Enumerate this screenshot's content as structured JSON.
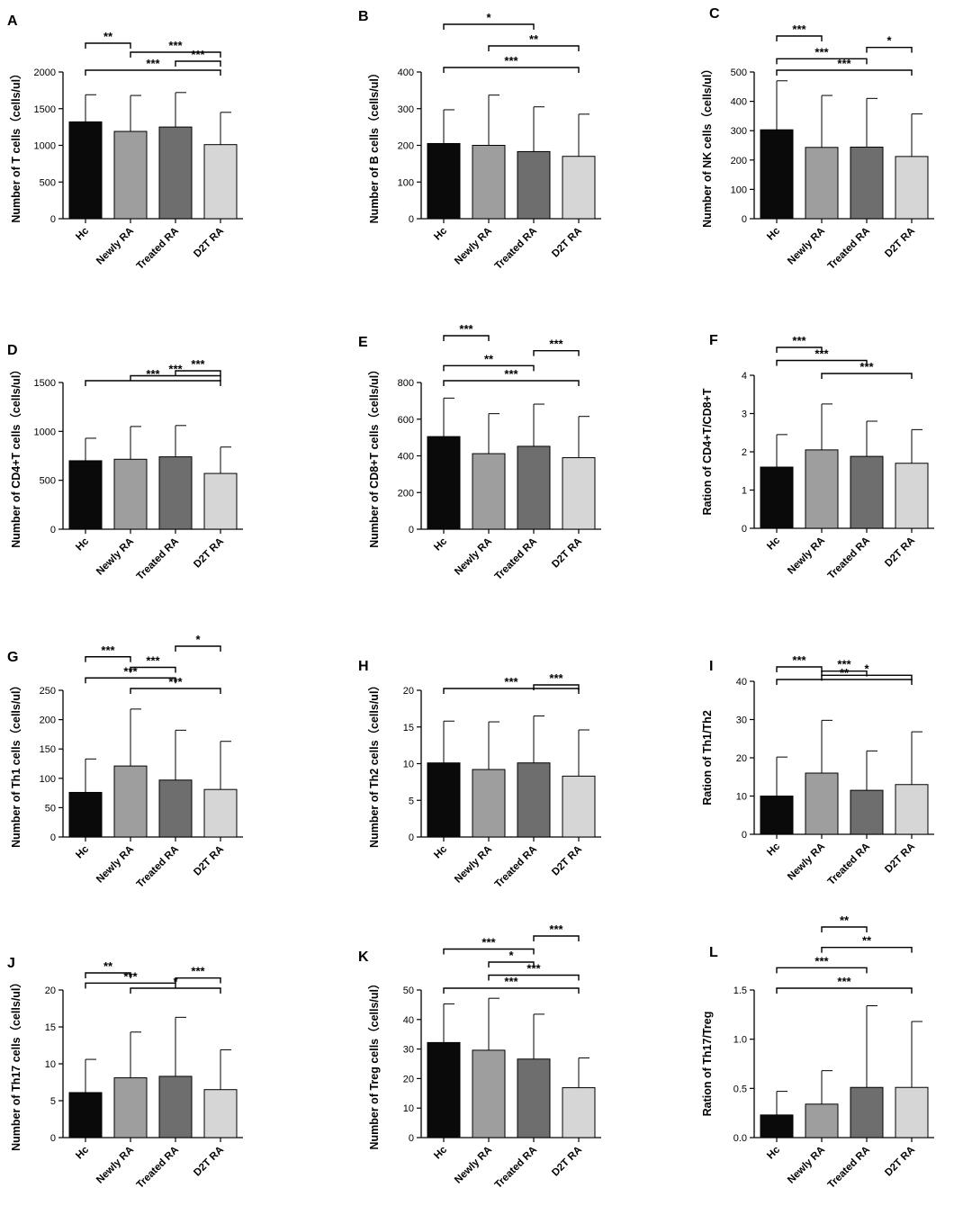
{
  "figure": {
    "categories": [
      "Hc",
      "Newly RA",
      "Treated RA",
      "D2T RA"
    ],
    "bar_colors": [
      "#0a0a0a",
      "#9e9e9e",
      "#6e6e6e",
      "#d6d6d6"
    ]
  },
  "chart_data": [
    {
      "panel": "A",
      "type": "bar",
      "categories": [
        "Hc",
        "Newly RA",
        "Treated RA",
        "D2T RA"
      ],
      "values": [
        1320,
        1190,
        1250,
        1010
      ],
      "errors_upper": [
        1690,
        1680,
        1720,
        1450
      ],
      "ylabel": "Number of T cells（cells/ul）",
      "ylim": [
        0,
        2000
      ],
      "yticks": [
        0,
        500,
        1000,
        1500,
        2000
      ],
      "comparisons": [
        {
          "from": 0,
          "to": 1,
          "label": "**"
        },
        {
          "from": 1,
          "to": 3,
          "label": "***"
        },
        {
          "from": 2,
          "to": 3,
          "label": "***"
        },
        {
          "from": 0,
          "to": 3,
          "label": "***"
        }
      ]
    },
    {
      "panel": "B",
      "type": "bar",
      "categories": [
        "Hc",
        "Newly RA",
        "Treated RA",
        "D2T RA"
      ],
      "values": [
        205,
        200,
        183,
        170
      ],
      "errors_upper": [
        297,
        337,
        305,
        285
      ],
      "ylabel": "Number of B cells（cells/ul）",
      "ylim": [
        0,
        400
      ],
      "yticks": [
        0,
        100,
        200,
        300,
        400
      ],
      "comparisons": [
        {
          "from": 0,
          "to": 2,
          "label": "*"
        },
        {
          "from": 1,
          "to": 3,
          "label": "**"
        },
        {
          "from": 0,
          "to": 3,
          "label": "***"
        }
      ]
    },
    {
      "panel": "C",
      "type": "bar",
      "categories": [
        "Hc",
        "Newly RA",
        "Treated RA",
        "D2T RA"
      ],
      "values": [
        303,
        243,
        244,
        212
      ],
      "errors_upper": [
        470,
        420,
        410,
        357
      ],
      "ylabel": "Number of NK cells（cells/ul）",
      "ylim": [
        0,
        500
      ],
      "yticks": [
        0,
        100,
        200,
        300,
        400,
        500
      ],
      "comparisons": [
        {
          "from": 0,
          "to": 1,
          "label": "***"
        },
        {
          "from": 2,
          "to": 3,
          "label": "*"
        },
        {
          "from": 0,
          "to": 2,
          "label": "***"
        },
        {
          "from": 0,
          "to": 3,
          "label": "***"
        }
      ]
    },
    {
      "panel": "D",
      "type": "bar",
      "categories": [
        "Hc",
        "Newly RA",
        "Treated RA",
        "D2T RA"
      ],
      "values": [
        700,
        715,
        740,
        570
      ],
      "errors_upper": [
        930,
        1050,
        1060,
        840
      ],
      "ylabel": "Number of CD4+T cells（cells/ul）",
      "ylim": [
        0,
        1500
      ],
      "yticks": [
        0,
        500,
        1000,
        1500
      ],
      "comparisons": [
        {
          "from": 2,
          "to": 3,
          "label": "***"
        },
        {
          "from": 1,
          "to": 3,
          "label": "***"
        },
        {
          "from": 0,
          "to": 3,
          "label": "***"
        }
      ]
    },
    {
      "panel": "E",
      "type": "bar",
      "categories": [
        "Hc",
        "Newly RA",
        "Treated RA",
        "D2T RA"
      ],
      "values": [
        505,
        412,
        452,
        390
      ],
      "errors_upper": [
        715,
        630,
        682,
        615
      ],
      "ylabel": "Number of CD8+T cells（cells/ul）",
      "ylim": [
        0,
        800
      ],
      "yticks": [
        0,
        200,
        400,
        600,
        800
      ],
      "comparisons": [
        {
          "from": 0,
          "to": 1,
          "label": "***"
        },
        {
          "from": 2,
          "to": 3,
          "label": "***"
        },
        {
          "from": 0,
          "to": 2,
          "label": "**"
        },
        {
          "from": 0,
          "to": 3,
          "label": "***"
        }
      ]
    },
    {
      "panel": "F",
      "type": "bar",
      "categories": [
        "Hc",
        "Newly RA",
        "Treated RA",
        "D2T RA"
      ],
      "values": [
        1.6,
        2.05,
        1.88,
        1.7
      ],
      "errors_upper": [
        2.45,
        3.25,
        2.8,
        2.58
      ],
      "ylabel": "Ration of CD4+T/CD8+T",
      "ylim": [
        0,
        4
      ],
      "yticks": [
        0,
        1,
        2,
        3,
        4
      ],
      "comparisons": [
        {
          "from": 0,
          "to": 1,
          "label": "***"
        },
        {
          "from": 0,
          "to": 2,
          "label": "***"
        },
        {
          "from": 1,
          "to": 3,
          "label": "***"
        }
      ]
    },
    {
      "panel": "G",
      "type": "bar",
      "categories": [
        "Hc",
        "Newly RA",
        "Treated RA",
        "D2T RA"
      ],
      "values": [
        76,
        121,
        97,
        81
      ],
      "errors_upper": [
        133,
        218,
        182,
        163
      ],
      "ylabel": "Number of Th1 cells（cells/ul）",
      "ylim": [
        0,
        250
      ],
      "yticks": [
        0,
        50,
        100,
        150,
        200,
        250
      ],
      "comparisons": [
        {
          "from": 2,
          "to": 3,
          "label": "*"
        },
        {
          "from": 0,
          "to": 1,
          "label": "***"
        },
        {
          "from": 1,
          "to": 2,
          "label": "***"
        },
        {
          "from": 0,
          "to": 2,
          "label": "***"
        },
        {
          "from": 1,
          "to": 3,
          "label": "***"
        }
      ]
    },
    {
      "panel": "H",
      "type": "bar",
      "categories": [
        "Hc",
        "Newly RA",
        "Treated RA",
        "D2T RA"
      ],
      "values": [
        10.1,
        9.2,
        10.1,
        8.3
      ],
      "errors_upper": [
        15.8,
        15.7,
        16.5,
        14.6
      ],
      "ylabel": "Number of Th2 cells（cells/ul）",
      "ylim": [
        0,
        20
      ],
      "yticks": [
        0,
        5,
        10,
        15,
        20
      ],
      "comparisons": [
        {
          "from": 2,
          "to": 3,
          "label": "***"
        },
        {
          "from": 0,
          "to": 3,
          "label": "***"
        }
      ]
    },
    {
      "panel": "I",
      "type": "bar",
      "categories": [
        "Hc",
        "Newly RA",
        "Treated RA",
        "D2T RA"
      ],
      "values": [
        10,
        16,
        11.5,
        13
      ],
      "errors_upper": [
        20.2,
        29.8,
        21.8,
        26.8
      ],
      "ylabel": "Ration of Th1/Th2",
      "ylim": [
        0,
        40
      ],
      "yticks": [
        0,
        10,
        20,
        30,
        40
      ],
      "comparisons": [
        {
          "from": 0,
          "to": 1,
          "label": "***"
        },
        {
          "from": 1,
          "to": 2,
          "label": "***"
        },
        {
          "from": 1,
          "to": 3,
          "label": "*"
        },
        {
          "from": 0,
          "to": 3,
          "label": "**"
        }
      ]
    },
    {
      "panel": "J",
      "type": "bar",
      "categories": [
        "Hc",
        "Newly RA",
        "Treated RA",
        "D2T RA"
      ],
      "values": [
        6.1,
        8.1,
        8.3,
        6.5
      ],
      "errors_upper": [
        10.6,
        14.3,
        16.3,
        11.9
      ],
      "ylabel": "Number of Th17 cells（cells/ul）",
      "ylim": [
        0,
        20
      ],
      "yticks": [
        0,
        5,
        10,
        15,
        20
      ],
      "comparisons": [
        {
          "from": 0,
          "to": 1,
          "label": "**"
        },
        {
          "from": 2,
          "to": 3,
          "label": "***"
        },
        {
          "from": 0,
          "to": 2,
          "label": "***"
        },
        {
          "from": 1,
          "to": 3,
          "label": "*"
        }
      ]
    },
    {
      "panel": "K",
      "type": "bar",
      "categories": [
        "Hc",
        "Newly RA",
        "Treated RA",
        "D2T RA"
      ],
      "values": [
        32.2,
        29.6,
        26.6,
        16.9
      ],
      "errors_upper": [
        45.3,
        47.2,
        41.8,
        27
      ],
      "ylabel": "Number of Treg cells（cells/ul）",
      "ylim": [
        0,
        50
      ],
      "yticks": [
        0,
        10,
        20,
        30,
        40,
        50
      ],
      "comparisons": [
        {
          "from": 2,
          "to": 3,
          "label": "***"
        },
        {
          "from": 0,
          "to": 2,
          "label": "***"
        },
        {
          "from": 1,
          "to": 2,
          "label": "*"
        },
        {
          "from": 1,
          "to": 3,
          "label": "***"
        },
        {
          "from": 0,
          "to": 3,
          "label": "***"
        }
      ]
    },
    {
      "panel": "L",
      "type": "bar",
      "categories": [
        "Hc",
        "Newly RA",
        "Treated RA",
        "D2T RA"
      ],
      "values": [
        0.23,
        0.34,
        0.51,
        0.51
      ],
      "errors_upper": [
        0.47,
        0.68,
        1.34,
        1.18
      ],
      "ylabel": "Ration of Th17/Treg",
      "ylim": [
        0,
        1.5
      ],
      "yticks": [
        "0.0",
        "0.5",
        "1.0",
        "1.5"
      ],
      "comparisons": [
        {
          "from": 1,
          "to": 2,
          "label": "**"
        },
        {
          "from": 1,
          "to": 3,
          "label": "**"
        },
        {
          "from": 0,
          "to": 2,
          "label": "***"
        },
        {
          "from": 0,
          "to": 3,
          "label": "***"
        }
      ]
    }
  ]
}
